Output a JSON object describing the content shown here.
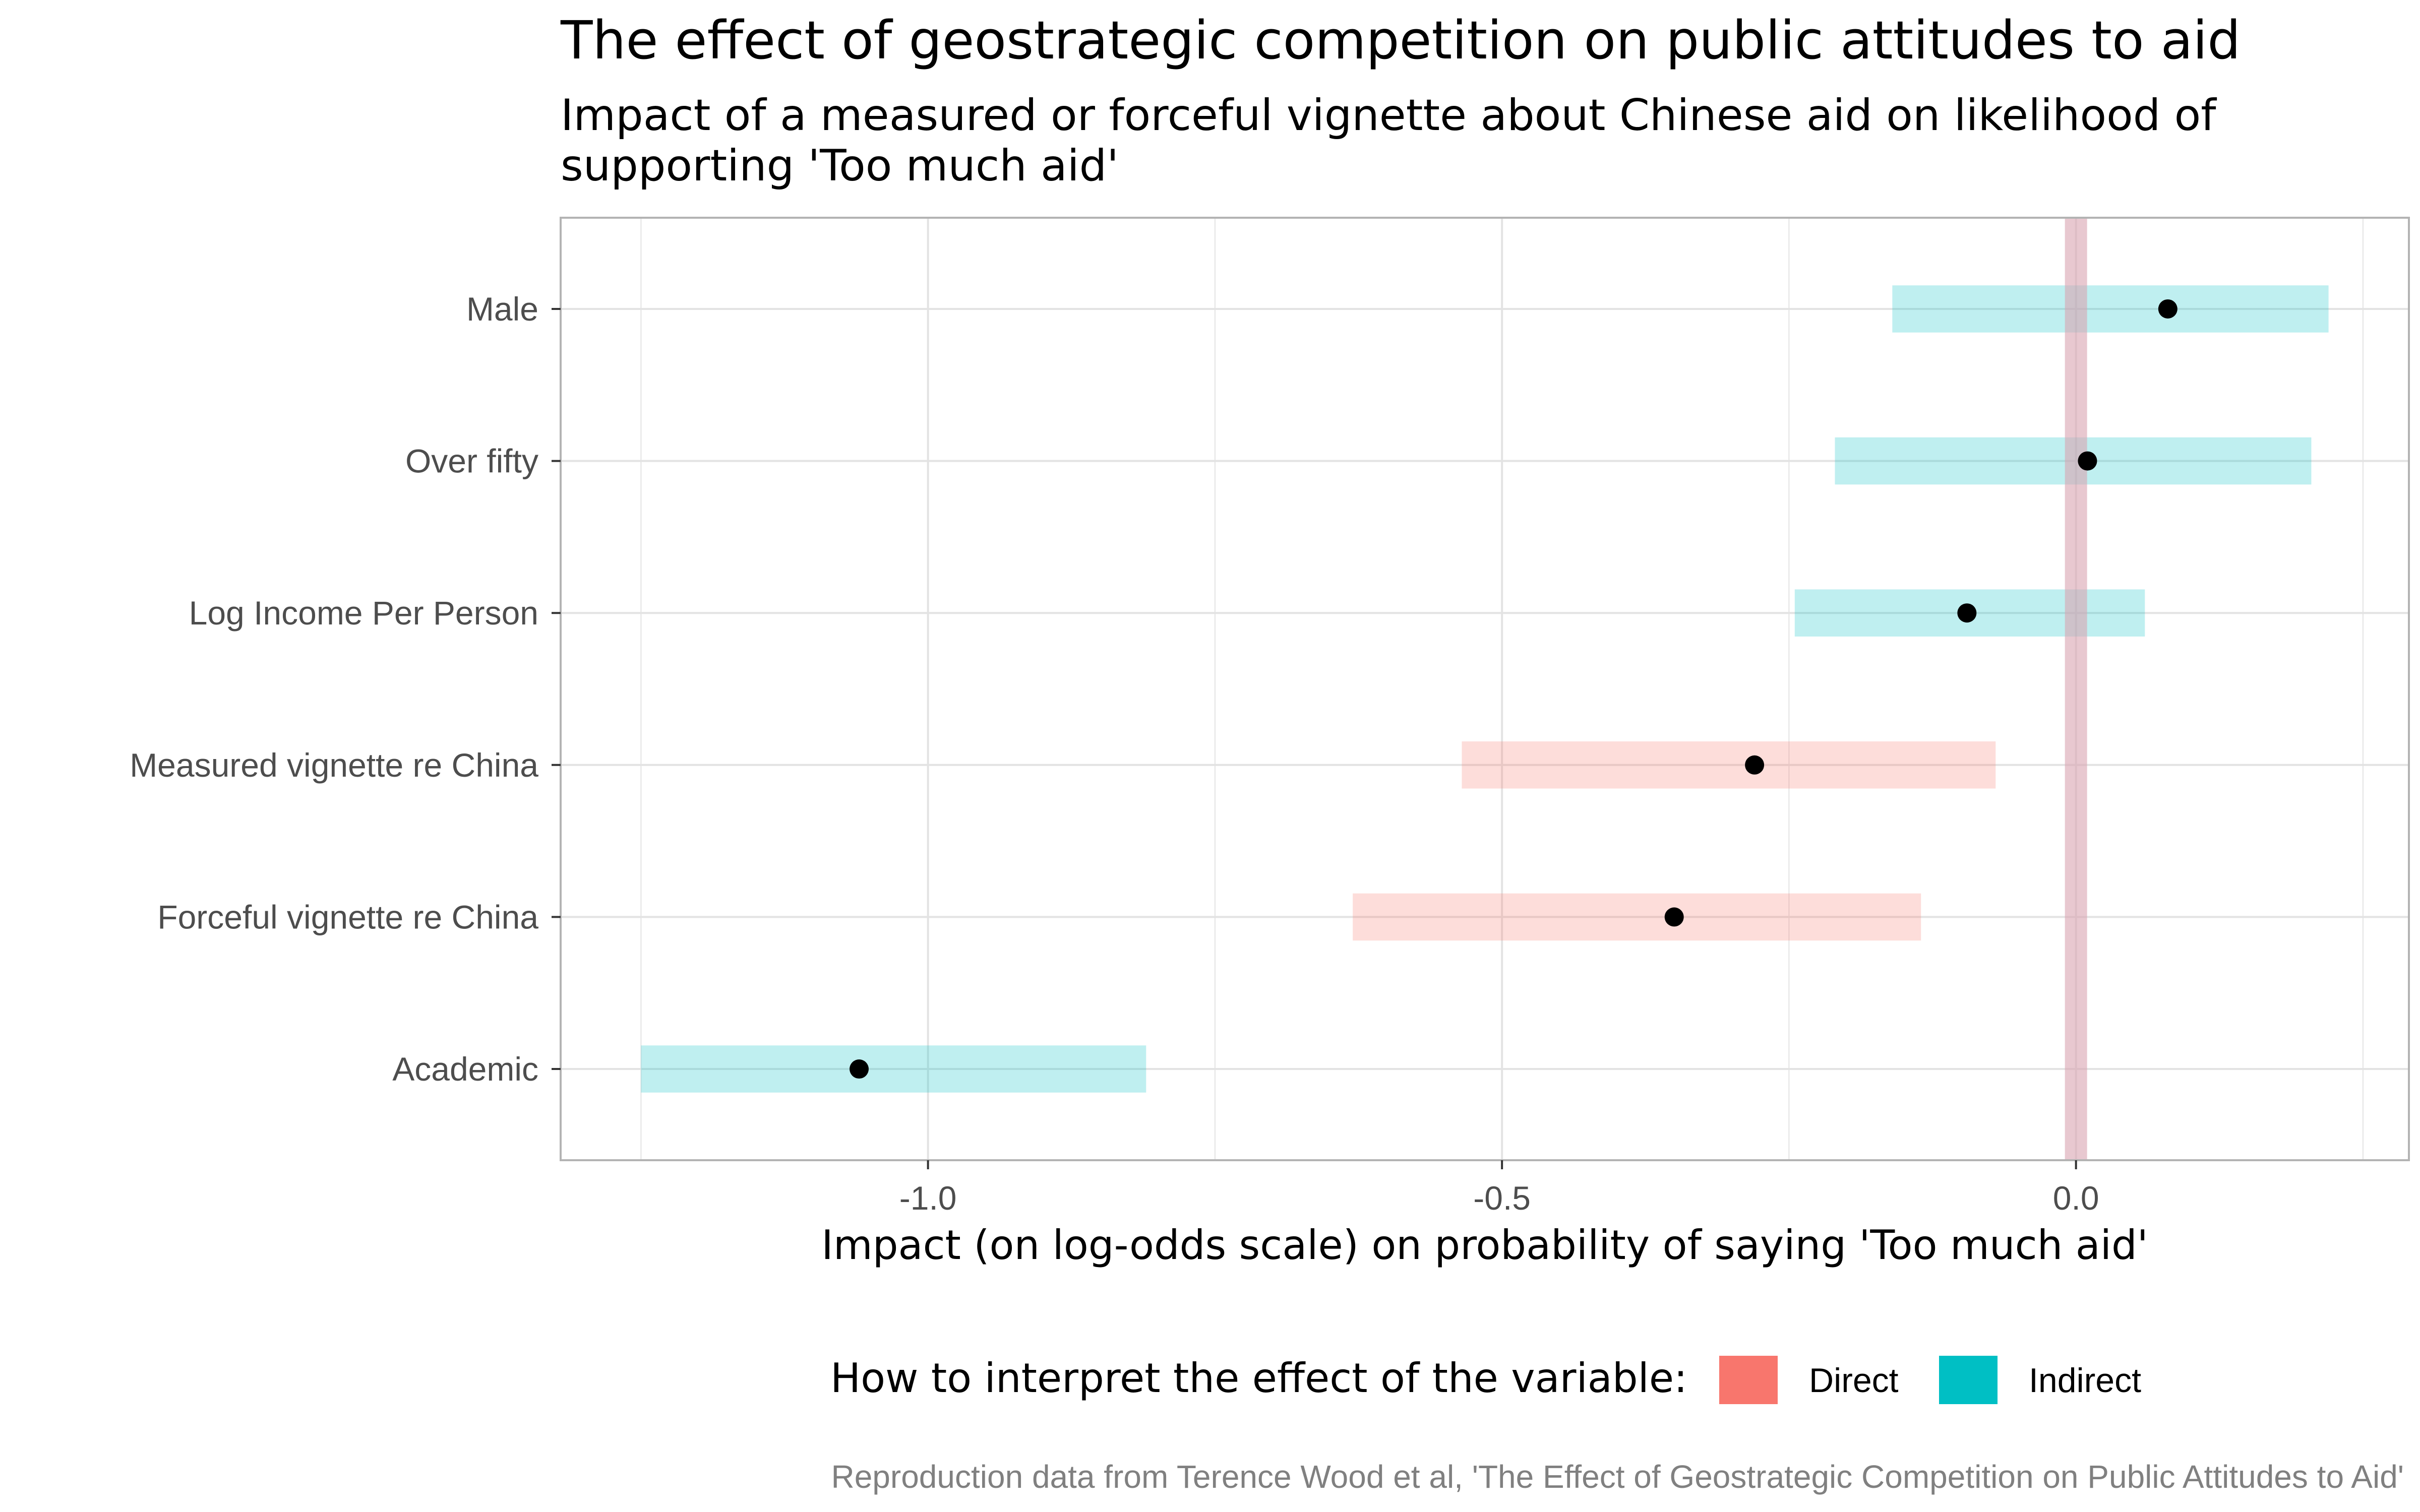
{
  "chart_data": {
    "type": "scatter",
    "title": "The effect of geostrategic competition on public attitudes to aid",
    "subtitle_lines": [
      "Impact of a measured or forceful vignette about Chinese aid on likelihood of",
      "supporting 'Too much aid'"
    ],
    "xlabel": "Impact (on log-odds scale) on probability of saying 'Too much aid'",
    "ylabel": "",
    "xlim": [
      -1.32,
      0.29
    ],
    "x_ticks": [
      -1.0,
      -0.5,
      0.0
    ],
    "x_tick_labels": [
      "-1.0",
      "-0.5",
      "0.0"
    ],
    "grid": true,
    "reference_line_x": 0.0,
    "categories": [
      "Male",
      "Over fifty",
      "Log Income Per Person",
      "Measured vignette re China",
      "Forceful vignette re China",
      "Academic"
    ],
    "points": [
      {
        "label": "Male",
        "estimate": 0.08,
        "low": -0.16,
        "high": 0.22,
        "group": "Indirect"
      },
      {
        "label": "Over fifty",
        "estimate": 0.01,
        "low": -0.21,
        "high": 0.205,
        "group": "Indirect"
      },
      {
        "label": "Log Income Per Person",
        "estimate": -0.095,
        "low": -0.245,
        "high": 0.06,
        "group": "Indirect"
      },
      {
        "label": "Measured vignette re China",
        "estimate": -0.28,
        "low": -0.535,
        "high": -0.07,
        "group": "Direct"
      },
      {
        "label": "Forceful vignette re China",
        "estimate": -0.35,
        "low": -0.63,
        "high": -0.135,
        "group": "Direct"
      },
      {
        "label": "Academic",
        "estimate": -1.06,
        "low": -1.25,
        "high": -0.81,
        "group": "Indirect"
      }
    ],
    "legend": {
      "title": "How to interpret the effect of the variable:",
      "position": "bottom",
      "items": [
        {
          "name": "Direct",
          "color": "#F8766D"
        },
        {
          "name": "Indirect",
          "color": "#00BFC4"
        }
      ]
    },
    "caption": "Reproduction data from Terence Wood et al, 'The Effect of Geostrategic Competition on Public Attitudes to Aid'",
    "colors": {
      "Direct": "#F8766D",
      "Indirect": "#00BFC4",
      "point": "#000000",
      "reference_line": "#d9a3b0",
      "grid": "#e3e3e3",
      "panel_border": "#b3b3b3"
    }
  }
}
